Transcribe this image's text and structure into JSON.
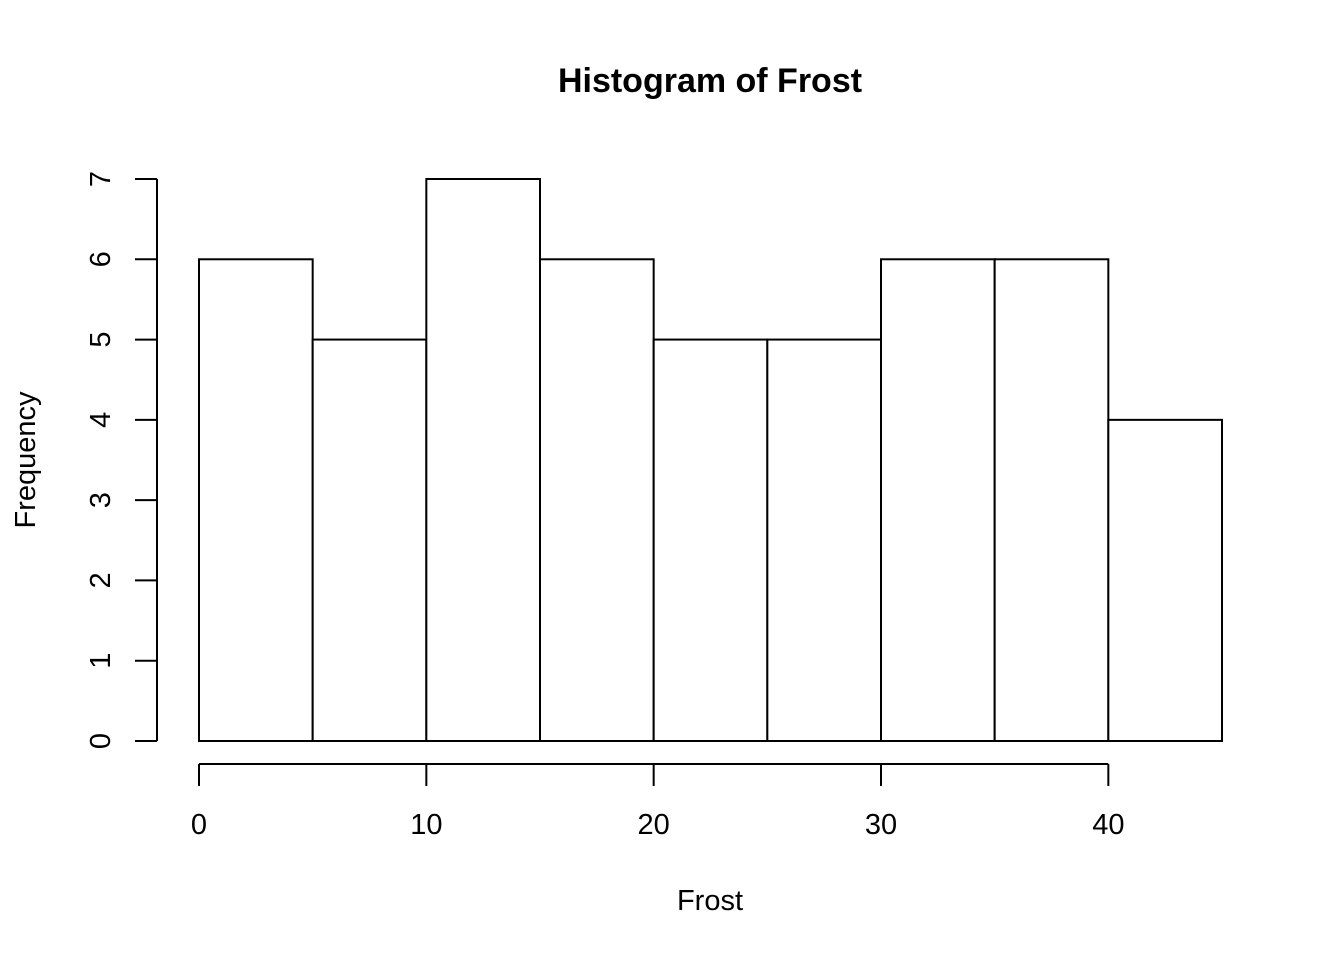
{
  "chart_data": {
    "type": "bar",
    "title": "Histogram of Frost",
    "xlabel": "Frost",
    "ylabel": "Frequency",
    "bins": [
      {
        "start": 0,
        "end": 5,
        "count": 6
      },
      {
        "start": 5,
        "end": 10,
        "count": 5
      },
      {
        "start": 10,
        "end": 15,
        "count": 7
      },
      {
        "start": 15,
        "end": 20,
        "count": 6
      },
      {
        "start": 20,
        "end": 25,
        "count": 5
      },
      {
        "start": 25,
        "end": 30,
        "count": 5
      },
      {
        "start": 30,
        "end": 35,
        "count": 6
      },
      {
        "start": 35,
        "end": 40,
        "count": 6
      },
      {
        "start": 40,
        "end": 45,
        "count": 4
      }
    ],
    "xticks": [
      "0",
      "10",
      "20",
      "30",
      "40"
    ],
    "xtick_values": [
      0,
      10,
      20,
      30,
      40
    ],
    "yticks": [
      "0",
      "1",
      "2",
      "3",
      "4",
      "5",
      "6",
      "7"
    ],
    "ytick_values": [
      0,
      1,
      2,
      3,
      4,
      5,
      6,
      7
    ],
    "xlim": [
      0,
      45
    ],
    "ylim": [
      0,
      7
    ],
    "grid": false,
    "legend": "none",
    "colors": {
      "bar_fill": "#ffffff",
      "bar_stroke": "#000000",
      "text": "#000000"
    }
  }
}
